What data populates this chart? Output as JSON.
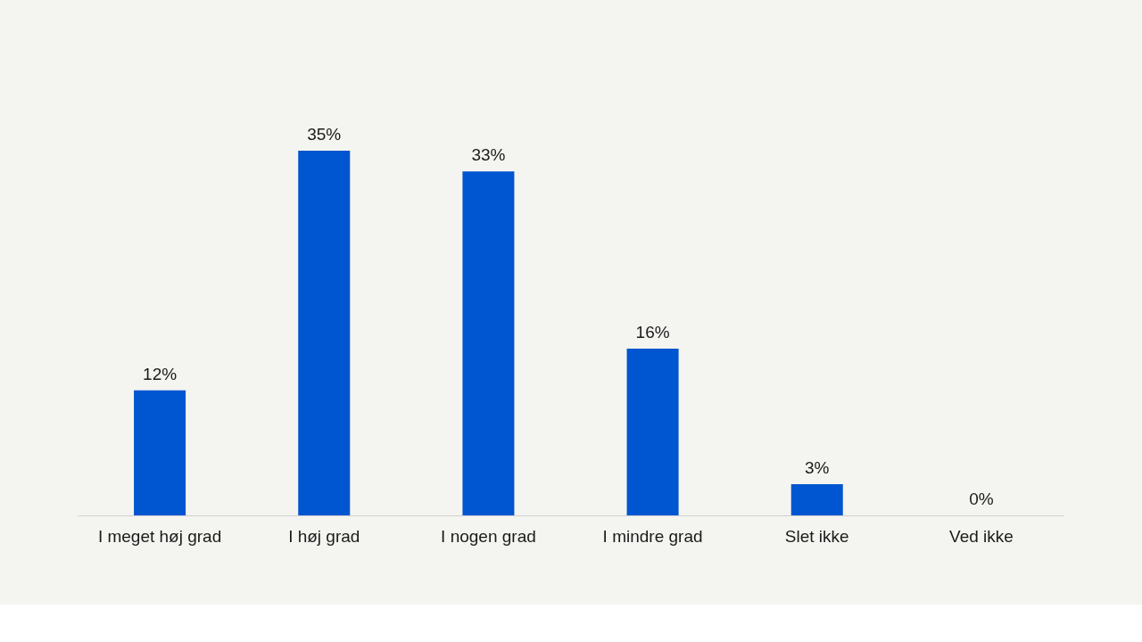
{
  "chart_data": {
    "type": "bar",
    "categories": [
      "I meget høj grad",
      "I høj grad",
      "I nogen grad",
      "I mindre grad",
      "Slet ikke",
      "Ved ikke"
    ],
    "values": [
      12,
      35,
      33,
      16,
      3,
      0
    ],
    "value_labels": [
      "12%",
      "35%",
      "33%",
      "16%",
      "3%",
      "0%"
    ],
    "color": "#0055d0"
  }
}
